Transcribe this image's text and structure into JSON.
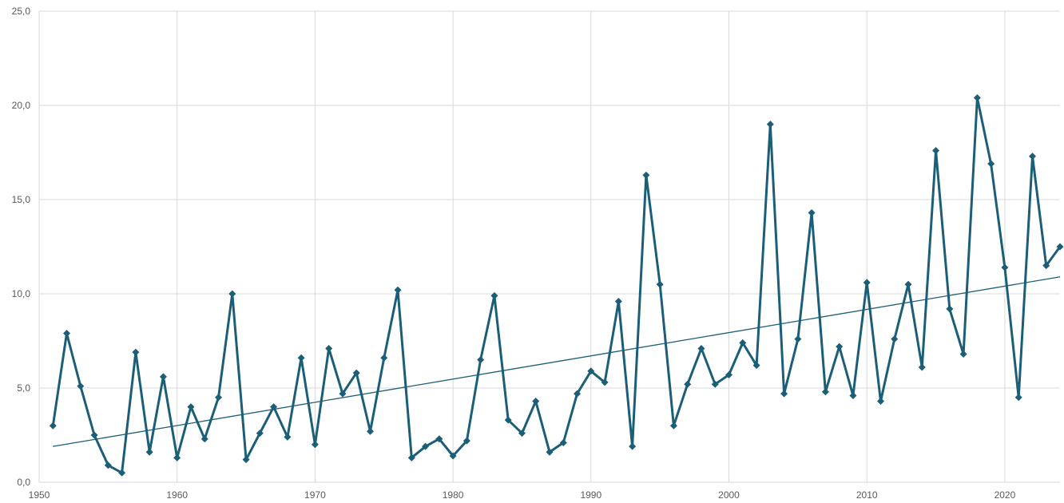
{
  "chart_data": {
    "type": "line",
    "title": "",
    "xlabel": "",
    "ylabel": "",
    "xlim": [
      1950,
      2024
    ],
    "ylim": [
      0,
      25
    ],
    "x_ticks": [
      1950,
      1960,
      1970,
      1980,
      1990,
      2000,
      2010,
      2020
    ],
    "x_tick_labels": [
      "1950",
      "1960",
      "1970",
      "1980",
      "1990",
      "2000",
      "2010",
      "2020"
    ],
    "y_ticks": [
      0,
      5,
      10,
      15,
      20,
      25
    ],
    "y_tick_labels": [
      "0,0",
      "5,0",
      "10,0",
      "15,0",
      "20,0",
      "25,0"
    ],
    "grid": true,
    "legend": "none",
    "colors": {
      "series": "#1b5e78",
      "trend": "#1b5e78",
      "grid": "#d9d9d9",
      "tick_text": "#595959"
    },
    "marker": "diamond",
    "series": [
      {
        "x": [
          1951,
          1952,
          1953,
          1954,
          1955,
          1956,
          1957,
          1958,
          1959,
          1960,
          1961,
          1962,
          1963,
          1964,
          1965,
          1966,
          1967,
          1968,
          1969,
          1970,
          1971,
          1972,
          1973,
          1974,
          1975,
          1976,
          1977,
          1978,
          1979,
          1980,
          1981,
          1982,
          1983,
          1984,
          1985,
          1986,
          1987,
          1988,
          1989,
          1990,
          1991,
          1992,
          1993,
          1994,
          1995,
          1996,
          1997,
          1998,
          1999,
          2000,
          2001,
          2002,
          2003,
          2004,
          2005,
          2006,
          2007,
          2008,
          2009,
          2010,
          2011,
          2012,
          2013,
          2014,
          2015,
          2016,
          2017,
          2018,
          2019,
          2020,
          2021,
          2022,
          2023,
          2024
        ],
        "values": [
          3.0,
          7.9,
          5.1,
          2.5,
          0.9,
          0.5,
          6.9,
          1.6,
          5.6,
          1.3,
          4.0,
          2.3,
          4.5,
          10.0,
          1.2,
          2.6,
          4.0,
          2.4,
          6.6,
          2.0,
          7.1,
          4.7,
          5.8,
          2.7,
          6.6,
          10.2,
          1.3,
          1.9,
          2.3,
          1.4,
          2.2,
          6.5,
          9.9,
          3.3,
          2.6,
          4.3,
          1.6,
          2.1,
          4.7,
          5.9,
          5.3,
          9.6,
          1.9,
          16.3,
          10.5,
          3.0,
          5.2,
          7.1,
          5.2,
          5.7,
          7.4,
          6.2,
          19.0,
          4.7,
          7.6,
          14.3,
          4.8,
          7.2,
          4.6,
          10.6,
          4.3,
          7.6,
          10.5,
          6.1,
          17.6,
          9.2,
          6.8,
          20.4,
          16.9,
          11.4,
          4.5,
          17.3,
          11.5,
          12.5
        ]
      }
    ],
    "trendline": {
      "type": "linear",
      "start": {
        "x": 1951,
        "y": 1.9
      },
      "end": {
        "x": 2024,
        "y": 10.9
      }
    }
  }
}
